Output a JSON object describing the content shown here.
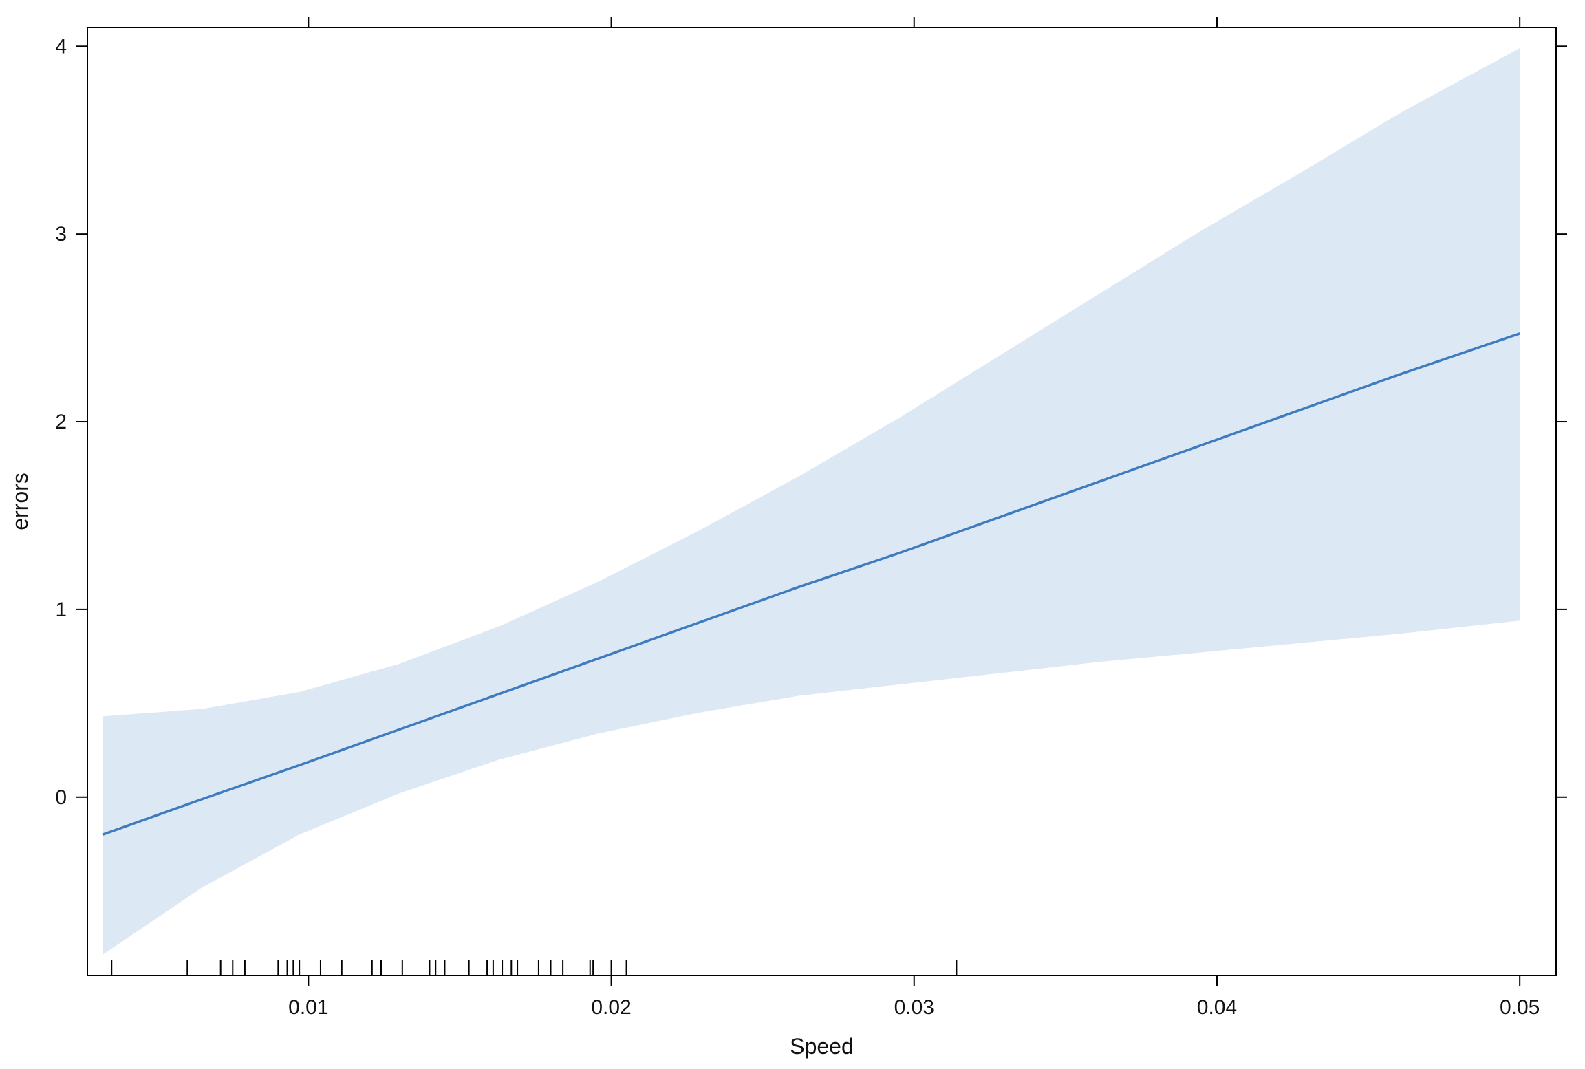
{
  "chart_data": {
    "type": "line",
    "title": "",
    "xlabel": "Speed",
    "ylabel": "errors",
    "xlim": [
      0.0027,
      0.0512
    ],
    "ylim": [
      -0.95,
      4.1
    ],
    "x_ticks": [
      0.01,
      0.02,
      0.03,
      0.04,
      0.05
    ],
    "x_tick_labels": [
      "0.01",
      "0.02",
      "0.03",
      "0.04",
      "0.05"
    ],
    "y_ticks": [
      0,
      1,
      2,
      3,
      4
    ],
    "y_tick_labels": [
      "0",
      "1",
      "2",
      "3",
      "4"
    ],
    "grid": false,
    "colors": {
      "line": "#3e7bbf",
      "band": "#dce8f4",
      "axis": "#000000"
    },
    "series": [
      {
        "x": [
          0.0032,
          0.0065,
          0.0097,
          0.013,
          0.0163,
          0.0196,
          0.0229,
          0.0262,
          0.0295,
          0.0328,
          0.0361,
          0.0394,
          0.0427,
          0.046,
          0.05
        ],
        "y": [
          -0.2,
          -0.01,
          0.17,
          0.36,
          0.55,
          0.74,
          0.93,
          1.12,
          1.3,
          1.49,
          1.68,
          1.87,
          2.06,
          2.25,
          2.47
        ],
        "lower": [
          -0.84,
          -0.48,
          -0.2,
          0.02,
          0.2,
          0.34,
          0.45,
          0.54,
          0.6,
          0.66,
          0.72,
          0.77,
          0.82,
          0.87,
          0.94
        ],
        "upper": [
          0.43,
          0.47,
          0.56,
          0.71,
          0.91,
          1.15,
          1.42,
          1.71,
          2.02,
          2.35,
          2.68,
          3.01,
          3.32,
          3.64,
          3.99
        ]
      }
    ],
    "rug_x": [
      0.0035,
      0.006,
      0.0071,
      0.0075,
      0.0079,
      0.009,
      0.0093,
      0.0095,
      0.0097,
      0.0104,
      0.0111,
      0.0121,
      0.0124,
      0.0131,
      0.014,
      0.0142,
      0.0145,
      0.0153,
      0.0159,
      0.0161,
      0.0164,
      0.0167,
      0.0169,
      0.0176,
      0.018,
      0.0184,
      0.0193,
      0.0194,
      0.02,
      0.0205,
      0.0314
    ]
  }
}
